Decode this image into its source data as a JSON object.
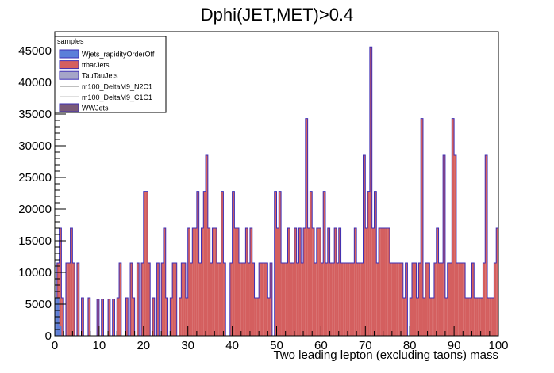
{
  "chart_data": {
    "type": "bar",
    "title": "Dphi(JET,MET)>0.4",
    "xlabel": "Two leading lepton (excluding taons) mass",
    "ylabel": "",
    "xlim": [
      0,
      100
    ],
    "ylim": [
      0,
      48000
    ],
    "bin_width": 0.5,
    "x_ticks": [
      0,
      10,
      20,
      30,
      40,
      50,
      60,
      70,
      80,
      90,
      100
    ],
    "y_ticks": [
      0,
      5000,
      10000,
      15000,
      20000,
      25000,
      30000,
      35000,
      40000,
      45000
    ],
    "legend": {
      "title": "samples",
      "placement": "top-left",
      "entries": [
        {
          "label": "Wjets_rapidityOrderOff",
          "color": "#5b7fd9",
          "style": "fill"
        },
        {
          "label": "ttbarJets",
          "color": "#d45f5f",
          "style": "fill"
        },
        {
          "label": "TauTauJets",
          "color": "#a5a5c8",
          "style": "fill"
        },
        {
          "label": "m100_DeltaM9_N2C1",
          "color": "#000000",
          "style": "line"
        },
        {
          "label": "m100_DeltaM9_C1C1",
          "color": "#000000",
          "style": "line"
        },
        {
          "label": "WWJets",
          "color": "#7a5a78",
          "style": "fill"
        }
      ]
    },
    "series": [
      {
        "name": "ttbarJets",
        "color": "#d45f5f",
        "bins": [
          [
            0.5,
            11500
          ],
          [
            1.0,
            17000
          ],
          [
            1.5,
            6000
          ],
          [
            2.5,
            11500
          ],
          [
            3.0,
            11500
          ],
          [
            3.5,
            17000
          ],
          [
            4.0,
            11500
          ],
          [
            5.0,
            11500
          ],
          [
            6.0,
            6000
          ],
          [
            7.5,
            6000
          ],
          [
            9.5,
            5800
          ],
          [
            10.5,
            5800
          ],
          [
            12.0,
            5800
          ],
          [
            13.0,
            5800
          ],
          [
            14.0,
            6000
          ],
          [
            14.5,
            11500
          ],
          [
            16.0,
            6000
          ],
          [
            17.0,
            11500
          ],
          [
            17.5,
            6000
          ],
          [
            18.5,
            11500
          ],
          [
            19.5,
            11500
          ],
          [
            20.0,
            22800
          ],
          [
            20.5,
            22800
          ],
          [
            21.0,
            11500
          ],
          [
            22.0,
            6000
          ],
          [
            23.0,
            11500
          ],
          [
            24.0,
            11500
          ],
          [
            24.5,
            17000
          ],
          [
            25.0,
            6000
          ],
          [
            26.0,
            6000
          ],
          [
            26.5,
            11500
          ],
          [
            27.0,
            11500
          ],
          [
            28.0,
            6000
          ],
          [
            28.5,
            11500
          ],
          [
            29.0,
            11500
          ],
          [
            29.5,
            6000
          ],
          [
            30.0,
            17000
          ],
          [
            30.5,
            11500
          ],
          [
            31.0,
            17000
          ],
          [
            31.5,
            17000
          ],
          [
            32.0,
            22800
          ],
          [
            32.5,
            11500
          ],
          [
            33.0,
            17000
          ],
          [
            33.5,
            22800
          ],
          [
            34.0,
            28500
          ],
          [
            34.5,
            17000
          ],
          [
            35.0,
            11500
          ],
          [
            35.5,
            17000
          ],
          [
            36.0,
            17000
          ],
          [
            36.5,
            11500
          ],
          [
            37.0,
            11500
          ],
          [
            37.5,
            22800
          ],
          [
            38.0,
            11500
          ],
          [
            39.5,
            11500
          ],
          [
            40.0,
            22800
          ],
          [
            40.5,
            17000
          ],
          [
            41.0,
            17000
          ],
          [
            41.5,
            11500
          ],
          [
            42.0,
            11500
          ],
          [
            42.5,
            11500
          ],
          [
            43.0,
            17000
          ],
          [
            43.5,
            11500
          ],
          [
            44.0,
            17000
          ],
          [
            44.5,
            11500
          ],
          [
            45.0,
            6000
          ],
          [
            45.5,
            6000
          ],
          [
            46.0,
            11500
          ],
          [
            46.5,
            11500
          ],
          [
            47.0,
            11500
          ],
          [
            47.5,
            11500
          ],
          [
            48.0,
            6000
          ],
          [
            48.5,
            11500
          ],
          [
            49.5,
            22800
          ],
          [
            50.0,
            17000
          ],
          [
            50.5,
            22800
          ],
          [
            51.0,
            11500
          ],
          [
            51.5,
            11500
          ],
          [
            52.0,
            11500
          ],
          [
            52.5,
            17000
          ],
          [
            53.0,
            11500
          ],
          [
            53.5,
            11500
          ],
          [
            54.0,
            17000
          ],
          [
            54.5,
            11500
          ],
          [
            55.0,
            17000
          ],
          [
            55.5,
            11500
          ],
          [
            56.0,
            17000
          ],
          [
            56.5,
            34300
          ],
          [
            57.0,
            17000
          ],
          [
            57.5,
            22800
          ],
          [
            58.0,
            17000
          ],
          [
            58.5,
            11500
          ],
          [
            59.0,
            17000
          ],
          [
            59.5,
            17000
          ],
          [
            60.0,
            11500
          ],
          [
            60.5,
            22800
          ],
          [
            61.0,
            11500
          ],
          [
            61.5,
            17000
          ],
          [
            62.0,
            11500
          ],
          [
            62.5,
            11500
          ],
          [
            63.0,
            17000
          ],
          [
            63.5,
            11500
          ],
          [
            64.0,
            17000
          ],
          [
            64.5,
            11500
          ],
          [
            65.0,
            11500
          ],
          [
            65.5,
            11500
          ],
          [
            66.0,
            11500
          ],
          [
            66.5,
            11500
          ],
          [
            67.0,
            11500
          ],
          [
            67.5,
            17000
          ],
          [
            68.0,
            11500
          ],
          [
            68.5,
            11500
          ],
          [
            69.0,
            11500
          ],
          [
            69.5,
            28500
          ],
          [
            70.0,
            17000
          ],
          [
            70.5,
            22800
          ],
          [
            71.0,
            45600
          ],
          [
            71.5,
            17000
          ],
          [
            72.0,
            22800
          ],
          [
            72.5,
            11500
          ],
          [
            73.0,
            17000
          ],
          [
            73.5,
            17000
          ],
          [
            74.0,
            17000
          ],
          [
            74.5,
            17000
          ],
          [
            75.0,
            17000
          ],
          [
            75.5,
            11500
          ],
          [
            76.0,
            11500
          ],
          [
            76.5,
            11500
          ],
          [
            77.0,
            11500
          ],
          [
            77.5,
            11500
          ],
          [
            78.0,
            11500
          ],
          [
            78.5,
            6000
          ],
          [
            79.0,
            11500
          ],
          [
            80.0,
            6000
          ],
          [
            80.5,
            11500
          ],
          [
            81.0,
            11500
          ],
          [
            81.5,
            6000
          ],
          [
            82.0,
            11500
          ],
          [
            82.5,
            34300
          ],
          [
            83.0,
            6000
          ],
          [
            83.5,
            11500
          ],
          [
            84.0,
            11500
          ],
          [
            84.5,
            6000
          ],
          [
            85.0,
            6000
          ],
          [
            85.5,
            11500
          ],
          [
            86.0,
            17000
          ],
          [
            86.5,
            11500
          ],
          [
            87.0,
            11500
          ],
          [
            87.5,
            28500
          ],
          [
            88.0,
            6000
          ],
          [
            88.5,
            11500
          ],
          [
            89.0,
            11500
          ],
          [
            89.5,
            34300
          ],
          [
            90.0,
            28500
          ],
          [
            90.5,
            11500
          ],
          [
            91.0,
            11500
          ],
          [
            91.5,
            11500
          ],
          [
            92.0,
            11500
          ],
          [
            92.5,
            6000
          ],
          [
            93.0,
            6000
          ],
          [
            93.5,
            6000
          ],
          [
            94.0,
            11500
          ],
          [
            94.5,
            6000
          ],
          [
            95.0,
            6000
          ],
          [
            95.5,
            6000
          ],
          [
            96.0,
            6000
          ],
          [
            96.5,
            11500
          ],
          [
            97.0,
            28500
          ],
          [
            97.5,
            6000
          ],
          [
            98.0,
            6000
          ],
          [
            98.5,
            6000
          ],
          [
            99.0,
            11500
          ],
          [
            99.5,
            17000
          ]
        ]
      },
      {
        "name": "Wjets_rapidityOrderOff",
        "color": "#5b7fd9",
        "bins": [
          [
            0.0,
            6000
          ],
          [
            0.5,
            6000
          ],
          [
            1.0,
            1500
          ]
        ]
      }
    ]
  }
}
